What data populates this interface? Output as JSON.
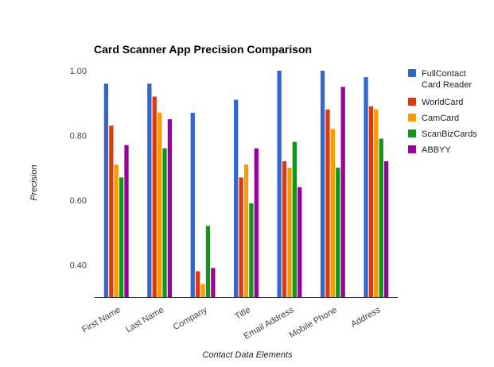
{
  "chart_data": {
    "type": "bar",
    "title": "Card Scanner App Precision Comparison",
    "xlabel": "Contact Data Elements",
    "ylabel": "Precision",
    "ylim": [
      0.3,
      1.0
    ],
    "yticks": [
      0.4,
      0.6,
      0.8,
      1.0
    ],
    "ytick_labels": [
      "0.40",
      "0.60",
      "0.80",
      "1.00"
    ],
    "grid": false,
    "legend_position": "right",
    "categories": [
      "First Name",
      "Last Name",
      "Company",
      "Title",
      "Email Address",
      "Mobile Phone",
      "Address"
    ],
    "series": [
      {
        "name": "FullContact Card Reader",
        "name_lines": [
          "FullContact",
          "Card Reader"
        ],
        "color": "#3366cc",
        "values": [
          0.96,
          0.96,
          0.87,
          0.91,
          1.0,
          1.0,
          0.98
        ]
      },
      {
        "name": "WorldCard",
        "name_lines": [
          "WorldCard"
        ],
        "color": "#dc3912",
        "values": [
          0.83,
          0.92,
          0.38,
          0.67,
          0.72,
          0.88,
          0.89
        ]
      },
      {
        "name": "CamCard",
        "name_lines": [
          "CamCard"
        ],
        "color": "#ff9900",
        "values": [
          0.71,
          0.87,
          0.34,
          0.71,
          0.7,
          0.82,
          0.88
        ]
      },
      {
        "name": "ScanBizCards",
        "name_lines": [
          "ScanBizCards"
        ],
        "color": "#109618",
        "values": [
          0.67,
          0.76,
          0.52,
          0.59,
          0.78,
          0.7,
          0.79
        ]
      },
      {
        "name": "ABBYY",
        "name_lines": [
          "ABBYY"
        ],
        "color": "#990099",
        "values": [
          0.77,
          0.85,
          0.39,
          0.76,
          0.64,
          0.95,
          0.72
        ]
      }
    ]
  }
}
